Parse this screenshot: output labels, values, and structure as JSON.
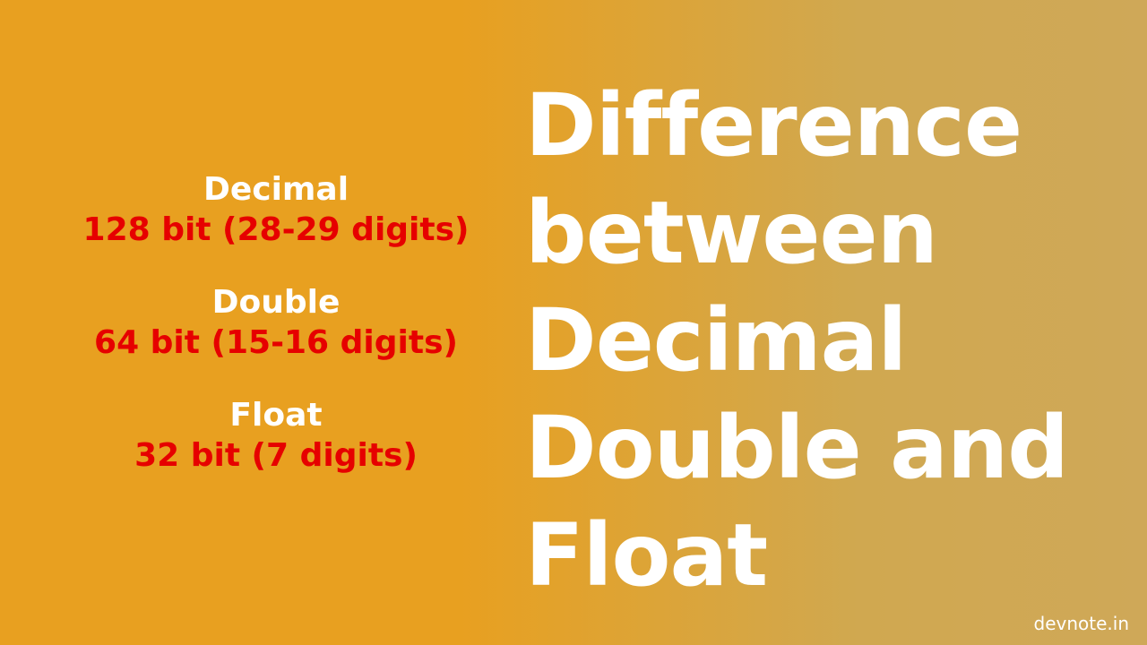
{
  "infographic": {
    "type": "infographic",
    "background": {
      "gradient_start": "#e8a020",
      "gradient_end": "#cfa858",
      "gradient_direction": "left-to-right"
    },
    "title": {
      "text": "Difference between Decimal Double and Float",
      "color": "#ffffff",
      "fontsize": 96,
      "fontweight": 900
    },
    "data_types": [
      {
        "name": "Decimal",
        "detail": "128 bit (28-29 digits)",
        "name_color": "#ffffff",
        "detail_color": "#e60000",
        "fontsize": 36
      },
      {
        "name": "Double",
        "detail": "64 bit (15-16 digits)",
        "name_color": "#ffffff",
        "detail_color": "#e60000",
        "fontsize": 36
      },
      {
        "name": "Float",
        "detail": "32 bit (7 digits)",
        "name_color": "#ffffff",
        "detail_color": "#e60000",
        "fontsize": 36
      }
    ],
    "attribution": {
      "text": "devnote.in",
      "color": "#ffffff",
      "fontsize": 20
    }
  }
}
